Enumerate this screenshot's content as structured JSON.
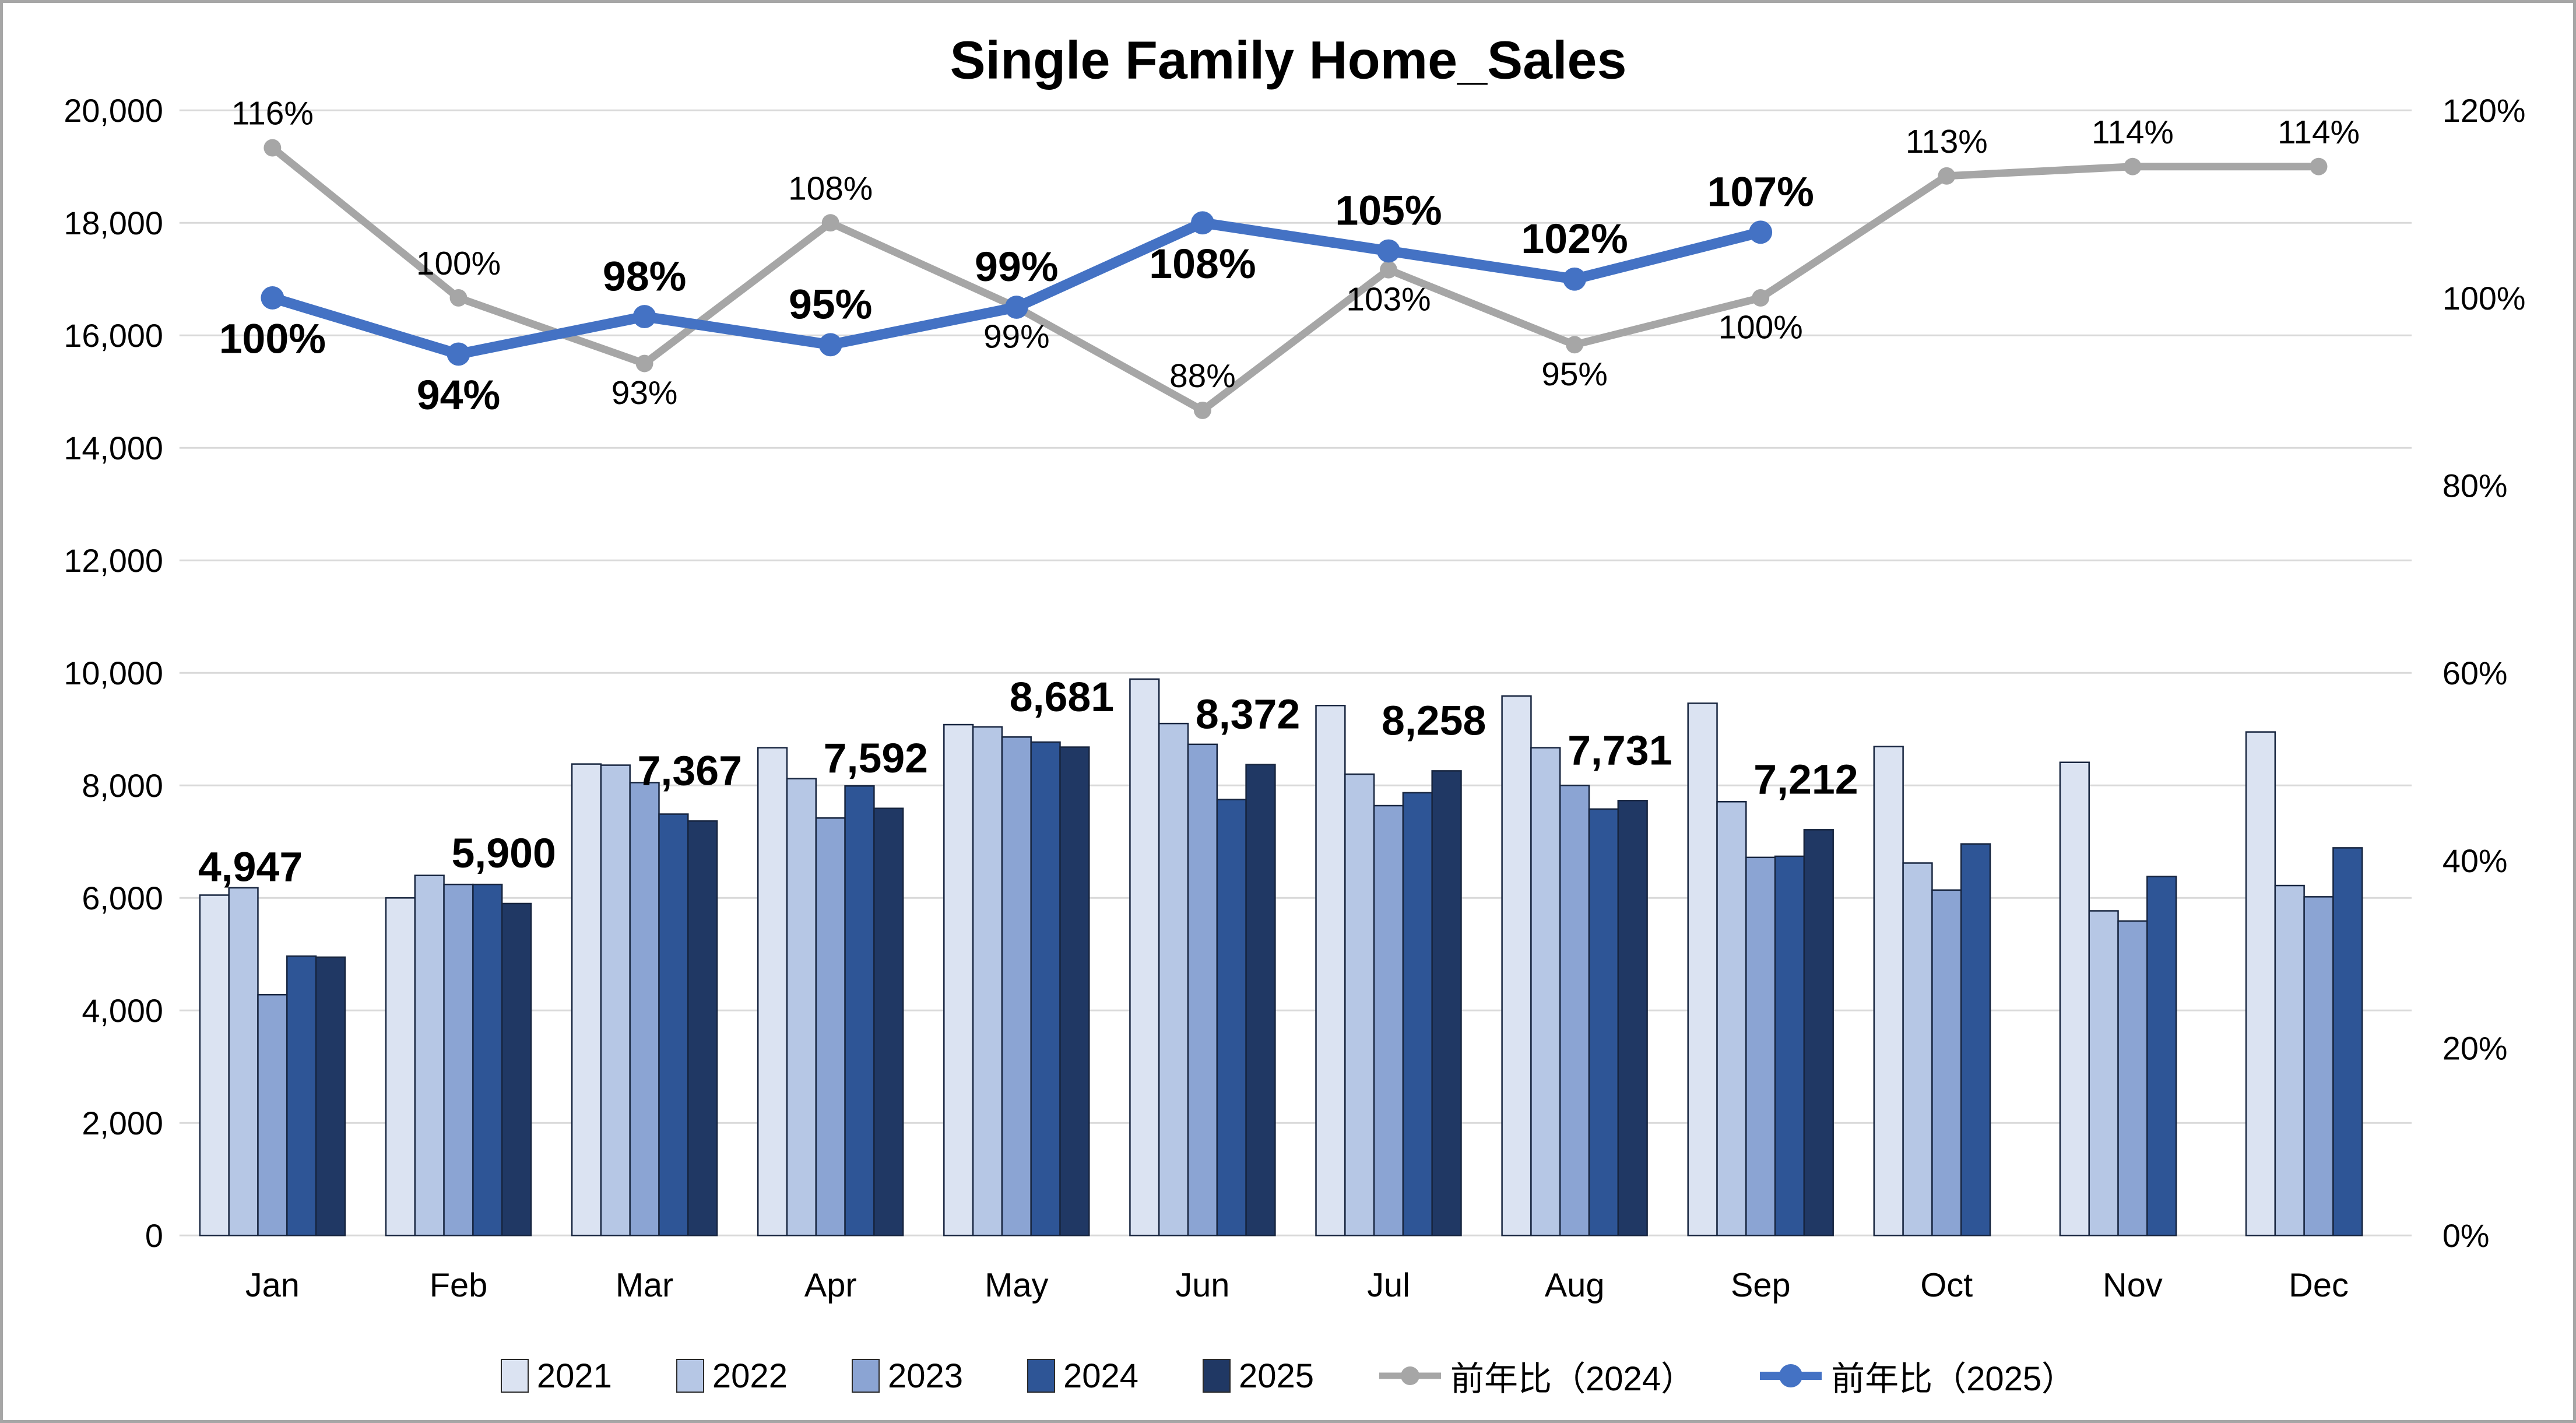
{
  "chart_data": {
    "type": "combo",
    "title": "Single Family Home_Sales",
    "categories": [
      "Jan",
      "Feb",
      "Mar",
      "Apr",
      "May",
      "Jun",
      "Jul",
      "Aug",
      "Sep",
      "Oct",
      "Nov",
      "Dec"
    ],
    "left_axis": {
      "min": 0,
      "max": 20000,
      "step": 2000,
      "tick_labels": [
        "0",
        "2,000",
        "4,000",
        "6,000",
        "8,000",
        "10,000",
        "12,000",
        "14,000",
        "16,000",
        "18,000",
        "20,000"
      ]
    },
    "right_axis": {
      "min": 0,
      "max": 120,
      "step": 20,
      "tick_labels": [
        "0%",
        "20%",
        "40%",
        "60%",
        "80%",
        "100%",
        "120%"
      ]
    },
    "grid": true,
    "legend_position": "bottom",
    "bar_series": [
      {
        "name": "2021",
        "color": "#dbe3f2",
        "values": [
          6050,
          6000,
          8380,
          8670,
          9080,
          9890,
          9420,
          9590,
          9460,
          8690,
          8410,
          8950
        ]
      },
      {
        "name": "2022",
        "color": "#b6c7e5",
        "values": [
          6180,
          6400,
          8360,
          8120,
          9040,
          9100,
          8200,
          8670,
          7710,
          6620,
          5770,
          6220
        ]
      },
      {
        "name": "2023",
        "color": "#8ba4d3",
        "values": [
          4280,
          6240,
          8050,
          7420,
          8860,
          8730,
          7640,
          8000,
          6720,
          6140,
          5590,
          6020
        ]
      },
      {
        "name": "2024",
        "color": "#2e5596",
        "values": [
          4965,
          6240,
          7490,
          7990,
          8770,
          7750,
          7870,
          7580,
          6740,
          6960,
          6380,
          6890
        ]
      },
      {
        "name": "2025",
        "color": "#203864",
        "values": [
          4947,
          5900,
          7367,
          7592,
          8681,
          8372,
          8258,
          7731,
          7212,
          null,
          null,
          null
        ]
      }
    ],
    "bar_value_labels": {
      "series": "2025",
      "texts": [
        "4,947",
        "5,900",
        "7,367",
        "7,592",
        "8,681",
        "8,372",
        "8,258",
        "7,731",
        "7,212"
      ],
      "default_offset": {
        "dx": 78,
        "dy": -62
      },
      "offset_overrides": {
        "0": {
          "dx": -38,
          "dy": -131
        }
      }
    },
    "line_series": [
      {
        "name": "前年比（2024）",
        "color": "#a6a6a6",
        "bold_labels": false,
        "values_pct": [
          116,
          100,
          93,
          108,
          99,
          88,
          103,
          95,
          100,
          113,
          114,
          114
        ],
        "labels": [
          "116%",
          "100%",
          "93%",
          "108%",
          "99%",
          "88%",
          "103%",
          "95%",
          "100%",
          "113%",
          "114%",
          "114%"
        ],
        "label_positions": [
          "above",
          "above",
          "below",
          "above",
          "below",
          "above",
          "below",
          "below",
          "below",
          "above",
          "above",
          "above"
        ]
      },
      {
        "name": "前年比（2025）",
        "color": "#4472c4",
        "bold_labels": true,
        "values_pct": [
          100,
          94,
          98,
          95,
          99,
          108,
          105,
          102,
          107,
          null,
          null,
          null
        ],
        "labels": [
          "100%",
          "94%",
          "98%",
          "95%",
          "99%",
          "108%",
          "105%",
          "102%",
          "107%"
        ],
        "label_positions": [
          "below",
          "below",
          "above",
          "above",
          "above",
          "below",
          "above",
          "above",
          "above"
        ]
      }
    ],
    "colors": {
      "gridline": "#d9d9d9",
      "bar_outline": "#17253f",
      "border": "#a6a6a6",
      "label_text": "#000000"
    }
  }
}
